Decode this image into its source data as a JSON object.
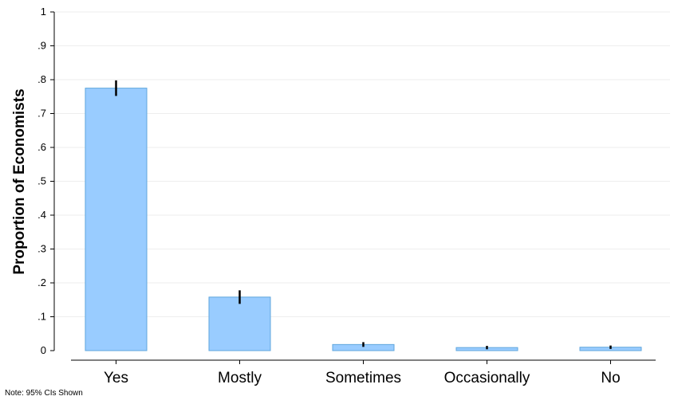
{
  "chart_data": {
    "type": "bar",
    "categories": [
      "Yes",
      "Mostly",
      "Sometimes",
      "Occasionally",
      "No"
    ],
    "values": [
      0.775,
      0.158,
      0.018,
      0.009,
      0.01
    ],
    "ci_low": [
      0.752,
      0.138,
      0.011,
      0.004,
      0.005
    ],
    "ci_high": [
      0.798,
      0.178,
      0.025,
      0.014,
      0.015
    ],
    "title": "",
    "xlabel": "",
    "ylabel": "Proportion of Economists",
    "ylim": [
      0,
      1
    ],
    "yticks": [
      0,
      0.1,
      0.2,
      0.3,
      0.4,
      0.5,
      0.6,
      0.7,
      0.8,
      0.9,
      1
    ],
    "ytick_labels": [
      "0",
      ".1",
      ".2",
      ".3",
      ".4",
      ".5",
      ".6",
      ".7",
      ".8",
      ".9",
      "1"
    ],
    "grid": true,
    "bar_color": "#99ccff",
    "bar_edge_color": "#5fa6dc",
    "errorbar_color": "#000000",
    "note": "Note:  95% CIs Shown"
  }
}
